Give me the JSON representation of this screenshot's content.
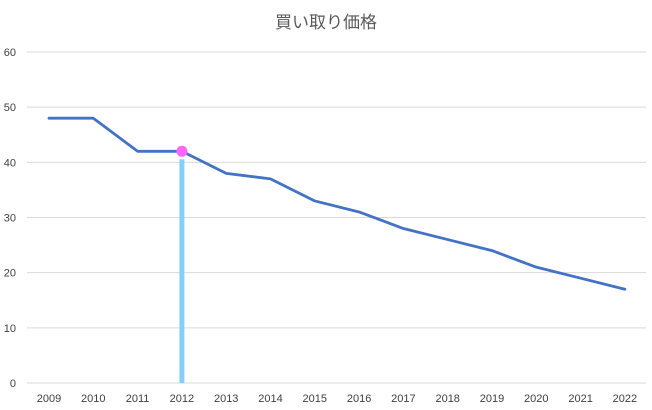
{
  "chart_data": {
    "type": "line",
    "title": "買い取り価格",
    "categories": [
      "2009",
      "2010",
      "2011",
      "2012",
      "2013",
      "2014",
      "2015",
      "2016",
      "2017",
      "2018",
      "2019",
      "2020",
      "2021",
      "2022"
    ],
    "series": [
      {
        "values": [
          48,
          48,
          42,
          42,
          38,
          37,
          33,
          31,
          28,
          26,
          24,
          21,
          19,
          17
        ],
        "color": "#4472c4"
      }
    ],
    "ylim": [
      0,
      60
    ],
    "yticks": [
      0,
      10,
      20,
      30,
      40,
      50,
      60
    ],
    "grid": true,
    "highlight": {
      "category": "2012",
      "value": 42,
      "marker_color": "#ff66ff",
      "bar_color": "#87cefa"
    }
  }
}
